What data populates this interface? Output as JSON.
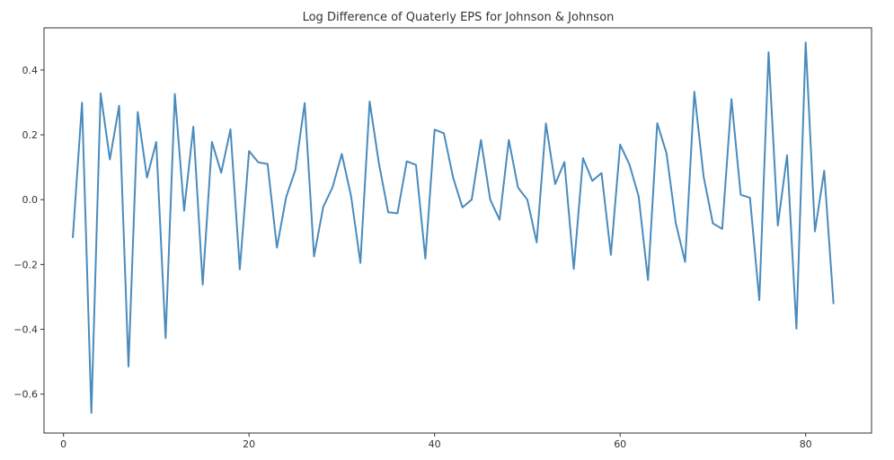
{
  "chart_data": {
    "type": "line",
    "title": "Log Difference of Quaterly EPS for Johnson & Johnson",
    "xlabel": "",
    "ylabel": "",
    "xlim": [
      -2.1,
      87.1
    ],
    "ylim": [
      -0.72,
      0.53
    ],
    "x_ticks": [
      0,
      20,
      40,
      60,
      80
    ],
    "y_ticks": [
      -0.6,
      -0.4,
      -0.2,
      0.0,
      0.2,
      0.4
    ],
    "y_tick_labels": [
      "−0.6",
      "−0.4",
      "−0.2",
      "0.0",
      "0.2",
      "0.4"
    ],
    "grid": false,
    "line_color": "#4a8bbd",
    "series": [
      {
        "x": [
          1,
          2,
          3,
          4,
          5,
          6,
          7,
          8,
          9,
          10,
          11,
          12,
          13,
          14,
          15,
          16,
          17,
          18,
          19,
          20,
          21,
          22,
          23,
          24,
          25,
          26,
          27,
          28,
          29,
          30,
          31,
          32,
          33,
          34,
          35,
          36,
          37,
          38,
          39,
          40,
          41,
          42,
          43,
          44,
          45,
          46,
          47,
          48,
          49,
          50,
          51,
          52,
          53,
          54,
          55,
          56,
          57,
          58,
          59,
          60,
          61,
          62,
          63,
          64,
          65,
          66,
          67,
          68,
          69,
          70,
          71,
          72,
          73,
          74,
          75,
          76,
          77,
          78,
          79,
          80,
          81,
          82,
          83
        ],
        "values": [
          -0.118,
          0.299,
          -0.658,
          0.328,
          0.124,
          0.29,
          -0.515,
          0.27,
          0.068,
          0.178,
          -0.427,
          0.326,
          -0.034,
          0.225,
          -0.262,
          0.178,
          0.083,
          0.217,
          -0.215,
          0.15,
          0.115,
          0.11,
          -0.148,
          0.008,
          0.092,
          0.298,
          -0.175,
          -0.022,
          0.038,
          0.141,
          0.01,
          -0.195,
          0.303,
          0.112,
          -0.039,
          -0.042,
          0.118,
          0.107,
          -0.182,
          0.216,
          0.205,
          0.068,
          -0.024,
          0.0,
          0.184,
          0.0,
          -0.062,
          0.184,
          0.037,
          0.0,
          -0.132,
          0.235,
          0.048,
          0.116,
          -0.214,
          0.128,
          0.058,
          0.082,
          -0.17,
          0.17,
          0.109,
          0.01,
          -0.248,
          0.236,
          0.143,
          -0.072,
          -0.192,
          0.333,
          0.071,
          -0.073,
          -0.09,
          0.31,
          0.015,
          0.006,
          -0.31,
          0.455,
          -0.08,
          0.137,
          -0.398,
          0.485,
          -0.098,
          0.089,
          -0.322
        ]
      }
    ]
  }
}
